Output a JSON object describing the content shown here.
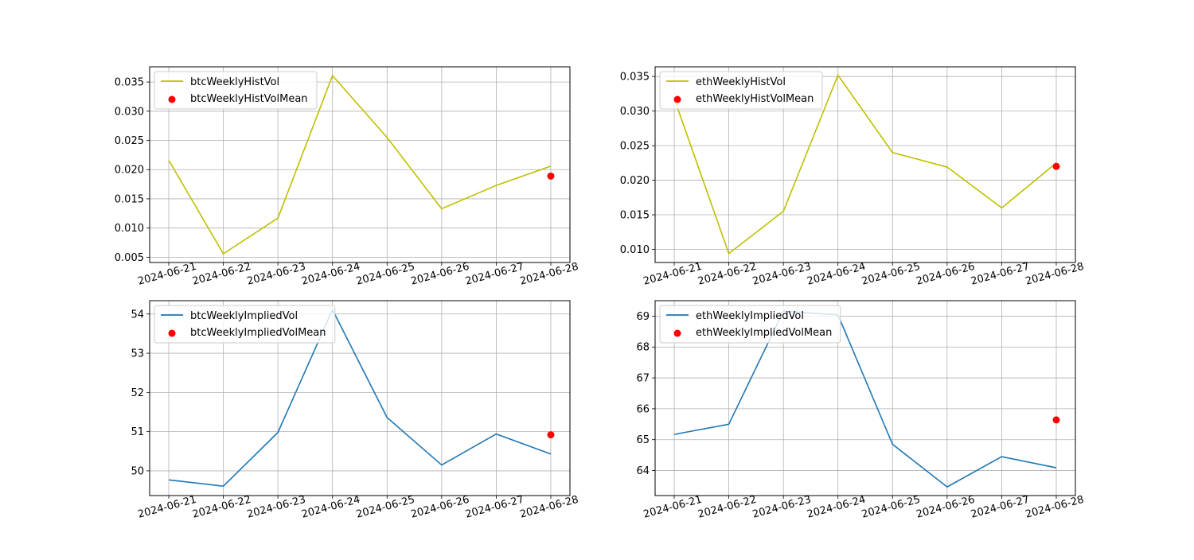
{
  "chart_data": [
    {
      "type": "line",
      "x": [
        "2024-06-21",
        "2024-06-22",
        "2024-06-23",
        "2024-06-24",
        "2024-06-25",
        "2024-06-26",
        "2024-06-27",
        "2024-06-28"
      ],
      "series": [
        {
          "name": "btcWeeklyHistVol",
          "kind": "line",
          "color": "#bfbf00",
          "values": [
            0.0216,
            0.0056,
            0.0117,
            0.0361,
            0.0255,
            0.0133,
            0.0173,
            0.0206
          ]
        },
        {
          "name": "btcWeeklyHistVolMean",
          "kind": "scatter",
          "color": "#ff0000",
          "points": [
            {
              "x": "2024-06-28",
              "y": 0.0189
            }
          ]
        }
      ],
      "ylim": [
        0.0041,
        0.0376
      ],
      "yticks": [
        0.005,
        0.01,
        0.015,
        0.02,
        0.025,
        0.03,
        0.035
      ],
      "yticklabels": [
        "0.005",
        "0.010",
        "0.015",
        "0.020",
        "0.025",
        "0.030",
        "0.035"
      ],
      "grid": true,
      "legend": "upper-left"
    },
    {
      "type": "line",
      "x": [
        "2024-06-21",
        "2024-06-22",
        "2024-06-23",
        "2024-06-24",
        "2024-06-25",
        "2024-06-26",
        "2024-06-27",
        "2024-06-28"
      ],
      "series": [
        {
          "name": "ethWeeklyHistVol",
          "kind": "line",
          "color": "#bfbf00",
          "values": [
            0.0318,
            0.0094,
            0.0155,
            0.0352,
            0.024,
            0.0219,
            0.016,
            0.0225
          ]
        },
        {
          "name": "ethWeeklyHistVolMean",
          "kind": "scatter",
          "color": "#ff0000",
          "points": [
            {
              "x": "2024-06-28",
              "y": 0.022
            }
          ]
        }
      ],
      "ylim": [
        0.0081,
        0.0364
      ],
      "yticks": [
        0.01,
        0.015,
        0.02,
        0.025,
        0.03,
        0.035
      ],
      "yticklabels": [
        "0.010",
        "0.015",
        "0.020",
        "0.025",
        "0.030",
        "0.035"
      ],
      "grid": true,
      "legend": "upper-left"
    },
    {
      "type": "line",
      "x": [
        "2024-06-21",
        "2024-06-22",
        "2024-06-23",
        "2024-06-24",
        "2024-06-25",
        "2024-06-26",
        "2024-06-27",
        "2024-06-28"
      ],
      "series": [
        {
          "name": "btcWeeklyImpliedVol",
          "kind": "line",
          "color": "#1f77b4",
          "values": [
            49.77,
            49.61,
            50.98,
            54.11,
            51.36,
            50.15,
            50.94,
            50.43
          ]
        },
        {
          "name": "btcWeeklyImpliedVolMean",
          "kind": "scatter",
          "color": "#ff0000",
          "points": [
            {
              "x": "2024-06-28",
              "y": 50.92
            }
          ]
        }
      ],
      "ylim": [
        49.37,
        54.34
      ],
      "yticks": [
        50,
        51,
        52,
        53,
        54
      ],
      "yticklabels": [
        "50",
        "51",
        "52",
        "53",
        "54"
      ],
      "grid": true,
      "legend": "upper-left"
    },
    {
      "type": "line",
      "x": [
        "2024-06-21",
        "2024-06-22",
        "2024-06-23",
        "2024-06-24",
        "2024-06-25",
        "2024-06-26",
        "2024-06-27",
        "2024-06-28"
      ],
      "series": [
        {
          "name": "ethWeeklyImpliedVol",
          "kind": "line",
          "color": "#1f77b4",
          "values": [
            65.17,
            65.5,
            69.16,
            69.04,
            64.85,
            63.47,
            64.45,
            64.09
          ]
        },
        {
          "name": "ethWeeklyImpliedVolMean",
          "kind": "scatter",
          "color": "#ff0000",
          "points": [
            {
              "x": "2024-06-28",
              "y": 65.64
            }
          ]
        }
      ],
      "ylim": [
        63.19,
        69.5
      ],
      "yticks": [
        64,
        65,
        66,
        67,
        68,
        69
      ],
      "yticklabels": [
        "64",
        "65",
        "66",
        "67",
        "68",
        "69"
      ],
      "grid": true,
      "legend": "upper-left"
    }
  ]
}
